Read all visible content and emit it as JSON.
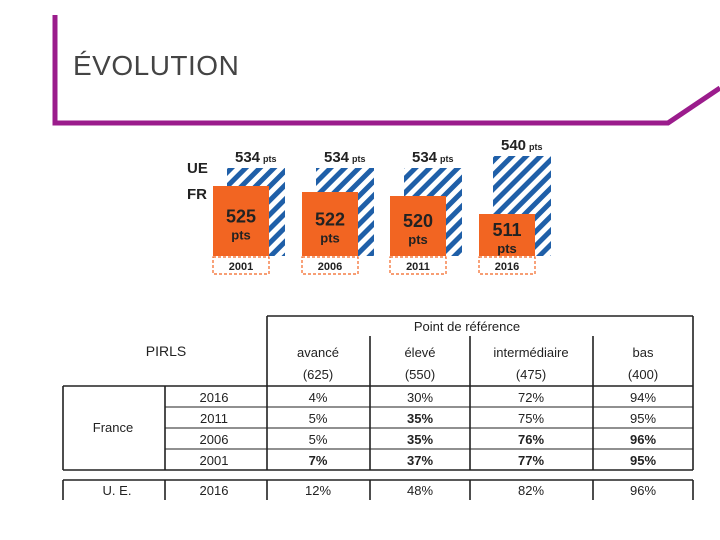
{
  "slide": {
    "title": "ÉVOLUTION",
    "accent_color": "#9b1c8c"
  },
  "chart_data": {
    "type": "bar",
    "labels": {
      "eu": "UE",
      "fr": "FR"
    },
    "unit": "pts",
    "categories": [
      "2001",
      "2006",
      "2011",
      "2016"
    ],
    "series": [
      {
        "name": "UE",
        "values": [
          534,
          534,
          534,
          540
        ],
        "color": "#1f5fa8"
      },
      {
        "name": "FR",
        "values": [
          525,
          522,
          520,
          511
        ],
        "color": "#f26522"
      }
    ],
    "eu_value_labels": [
      "534",
      "534",
      "534",
      "540"
    ],
    "fr_value_labels": [
      "525",
      "522",
      "520",
      "511"
    ]
  },
  "table": {
    "corner_label": "PIRLS",
    "group_header": "Point de référence",
    "columns": [
      {
        "name": "avancé",
        "score": "(625)"
      },
      {
        "name": "élevé",
        "score": "(550)"
      },
      {
        "name": "intermédiaire",
        "score": "(475)"
      },
      {
        "name": "bas",
        "score": "(400)"
      }
    ],
    "france": {
      "label": "France",
      "rows": [
        {
          "year": "2016",
          "values": [
            "4%",
            "30%",
            "72%",
            "94%"
          ]
        },
        {
          "year": "2011",
          "values": [
            "5%",
            "35%",
            "75%",
            "95%"
          ]
        },
        {
          "year": "2006",
          "values": [
            "5%",
            "35%",
            "76%",
            "96%"
          ]
        },
        {
          "year": "2001",
          "values": [
            "7%",
            "37%",
            "77%",
            "95%"
          ]
        }
      ]
    },
    "eu": {
      "label": "U. E.",
      "year": "2016",
      "values": [
        "12%",
        "48%",
        "82%",
        "96%"
      ]
    }
  }
}
